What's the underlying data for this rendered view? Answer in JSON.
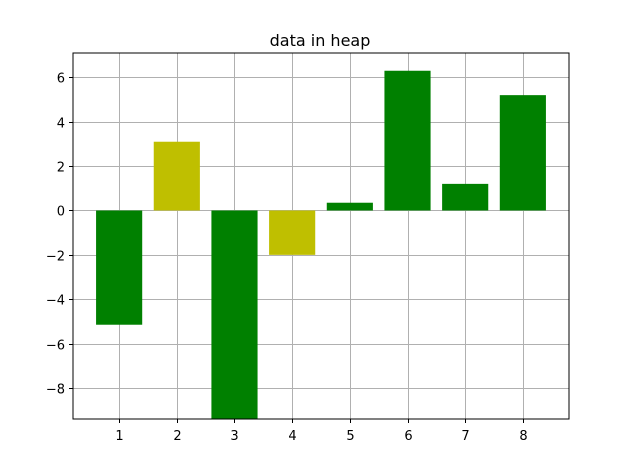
{
  "chart_data": {
    "type": "bar",
    "title": "data in heap",
    "xlabel": "",
    "ylabel": "",
    "categories": [
      "1",
      "2",
      "3",
      "4",
      "5",
      "6",
      "7",
      "8"
    ],
    "values": [
      -5.15,
      3.1,
      -9.4,
      -2.0,
      0.35,
      6.3,
      1.2,
      5.2
    ],
    "bar_colors": [
      "#008000",
      "#bfbf00",
      "#008000",
      "#bfbf00",
      "#008000",
      "#008000",
      "#008000",
      "#008000"
    ],
    "xlim": [
      0.2,
      8.8
    ],
    "ylim": [
      -9.4,
      7.1
    ],
    "yticks": [
      -8,
      -6,
      -4,
      -2,
      0,
      2,
      4,
      6
    ],
    "ytick_labels": [
      "−8",
      "−6",
      "−4",
      "−2",
      "0",
      "2",
      "4",
      "6"
    ],
    "xticks": [
      1,
      2,
      3,
      4,
      5,
      6,
      7,
      8
    ],
    "grid": true
  }
}
